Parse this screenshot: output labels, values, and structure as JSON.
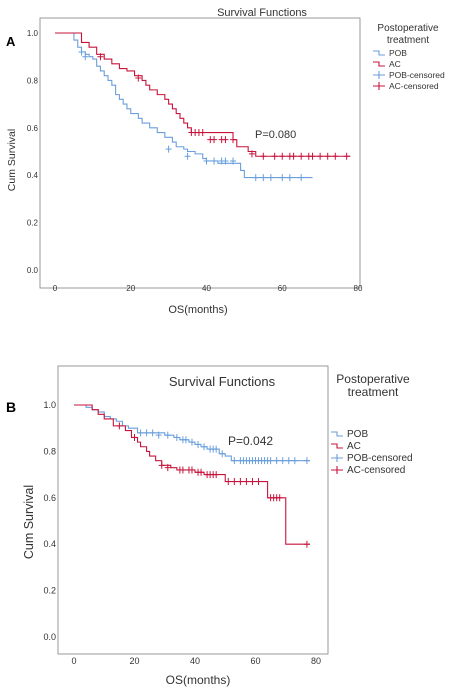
{
  "colors": {
    "POB": "#6a9fdc",
    "AC": "#c8143c",
    "axis": "#808080",
    "text": "#333333",
    "panel_label": "#000000"
  },
  "chart_data": [
    {
      "type": "line",
      "panel_label": "A",
      "title": "Survival Functions",
      "xlabel": "OS(months)",
      "ylabel": "Cum Survival",
      "xlim": [
        0,
        80
      ],
      "ylim": [
        0,
        1.0
      ],
      "x_ticks": [
        "0",
        "20",
        "40",
        "60",
        "80"
      ],
      "y_ticks": [
        "0.0",
        "0.2",
        "0.4",
        "0.6",
        "0.8",
        "1.0"
      ],
      "legend_title": "Postoperative treatment",
      "legend_placement": "top-right",
      "legend": [
        "POB",
        "AC",
        "POB-censored",
        "AC-censored"
      ],
      "annotation": "P=0.080",
      "grid": false,
      "series": [
        {
          "name": "POB",
          "color_key": "POB",
          "steps": [
            [
              0,
              1.0
            ],
            [
              5,
              0.97
            ],
            [
              6,
              0.94
            ],
            [
              7,
              0.92
            ],
            [
              8,
              0.91
            ],
            [
              9,
              0.9
            ],
            [
              10,
              0.89
            ],
            [
              11,
              0.86
            ],
            [
              12,
              0.84
            ],
            [
              13,
              0.82
            ],
            [
              14,
              0.8
            ],
            [
              15,
              0.78
            ],
            [
              16,
              0.74
            ],
            [
              17,
              0.72
            ],
            [
              18,
              0.7
            ],
            [
              19,
              0.68
            ],
            [
              20,
              0.66
            ],
            [
              22,
              0.64
            ],
            [
              23,
              0.62
            ],
            [
              25,
              0.6
            ],
            [
              27,
              0.58
            ],
            [
              29,
              0.56
            ],
            [
              31,
              0.54
            ],
            [
              32,
              0.52
            ],
            [
              34,
              0.51
            ],
            [
              35,
              0.5
            ],
            [
              37,
              0.49
            ],
            [
              39,
              0.47
            ],
            [
              40,
              0.46
            ],
            [
              43,
              0.45
            ],
            [
              49,
              0.42
            ],
            [
              50,
              0.39
            ],
            [
              68,
              0.39
            ]
          ],
          "censored": [
            [
              7,
              0.92
            ],
            [
              8,
              0.9
            ],
            [
              30,
              0.51
            ],
            [
              35,
              0.48
            ],
            [
              40,
              0.46
            ],
            [
              42,
              0.46
            ],
            [
              44,
              0.46
            ],
            [
              45,
              0.46
            ],
            [
              47,
              0.46
            ],
            [
              53,
              0.39
            ],
            [
              55,
              0.39
            ],
            [
              57,
              0.39
            ],
            [
              60,
              0.39
            ],
            [
              62,
              0.39
            ],
            [
              65,
              0.39
            ]
          ]
        },
        {
          "name": "AC",
          "color_key": "AC",
          "steps": [
            [
              0,
              1.0
            ],
            [
              7,
              0.96
            ],
            [
              9,
              0.94
            ],
            [
              11,
              0.91
            ],
            [
              13,
              0.89
            ],
            [
              15,
              0.87
            ],
            [
              17,
              0.85
            ],
            [
              19,
              0.84
            ],
            [
              21,
              0.82
            ],
            [
              23,
              0.8
            ],
            [
              24,
              0.78
            ],
            [
              25,
              0.76
            ],
            [
              27,
              0.74
            ],
            [
              29,
              0.72
            ],
            [
              30,
              0.7
            ],
            [
              31,
              0.68
            ],
            [
              32,
              0.66
            ],
            [
              33,
              0.64
            ],
            [
              34,
              0.62
            ],
            [
              35,
              0.6
            ],
            [
              36,
              0.58
            ],
            [
              47,
              0.55
            ],
            [
              48,
              0.52
            ],
            [
              51,
              0.5
            ],
            [
              53,
              0.48
            ],
            [
              78,
              0.48
            ]
          ],
          "censored": [
            [
              12,
              0.9
            ],
            [
              22,
              0.81
            ],
            [
              36,
              0.58
            ],
            [
              37,
              0.58
            ],
            [
              38,
              0.58
            ],
            [
              39,
              0.58
            ],
            [
              41,
              0.55
            ],
            [
              42,
              0.55
            ],
            [
              44,
              0.55
            ],
            [
              45,
              0.55
            ],
            [
              47,
              0.55
            ],
            [
              52,
              0.49
            ],
            [
              55,
              0.48
            ],
            [
              58,
              0.48
            ],
            [
              60,
              0.48
            ],
            [
              62,
              0.48
            ],
            [
              63,
              0.48
            ],
            [
              65,
              0.48
            ],
            [
              67,
              0.48
            ],
            [
              68,
              0.48
            ],
            [
              70,
              0.48
            ],
            [
              72,
              0.48
            ],
            [
              74,
              0.48
            ],
            [
              77,
              0.48
            ]
          ]
        }
      ]
    },
    {
      "type": "line",
      "panel_label": "B",
      "title": "Survival Functions",
      "xlabel": "OS(months)",
      "ylabel": "Cum Survival",
      "xlim": [
        0,
        80
      ],
      "ylim": [
        0,
        1.0
      ],
      "x_ticks": [
        "0",
        "20",
        "40",
        "60",
        "80"
      ],
      "y_ticks": [
        "0.0",
        "0.2",
        "0.4",
        "0.6",
        "0.8",
        "1.0"
      ],
      "legend_title": "Postoperative treatment",
      "legend_placement": "top-right",
      "legend": [
        "POB",
        "AC",
        "POB-censored",
        "AC-censored"
      ],
      "annotation": "P=0.042",
      "grid": false,
      "series": [
        {
          "name": "POB",
          "color_key": "POB",
          "steps": [
            [
              0,
              1.0
            ],
            [
              4,
              0.99
            ],
            [
              6,
              0.98
            ],
            [
              8,
              0.97
            ],
            [
              10,
              0.95
            ],
            [
              12,
              0.94
            ],
            [
              14,
              0.93
            ],
            [
              16,
              0.91
            ],
            [
              18,
              0.9
            ],
            [
              21,
              0.88
            ],
            [
              30,
              0.87
            ],
            [
              33,
              0.86
            ],
            [
              35,
              0.85
            ],
            [
              38,
              0.84
            ],
            [
              40,
              0.83
            ],
            [
              42,
              0.82
            ],
            [
              44,
              0.81
            ],
            [
              48,
              0.79
            ],
            [
              50,
              0.78
            ],
            [
              52,
              0.76
            ],
            [
              78,
              0.76
            ]
          ],
          "censored": [
            [
              22,
              0.88
            ],
            [
              24,
              0.88
            ],
            [
              26,
              0.88
            ],
            [
              28,
              0.87
            ],
            [
              31,
              0.87
            ],
            [
              34,
              0.86
            ],
            [
              36,
              0.85
            ],
            [
              37,
              0.85
            ],
            [
              39,
              0.84
            ],
            [
              41,
              0.83
            ],
            [
              43,
              0.82
            ],
            [
              45,
              0.81
            ],
            [
              46,
              0.81
            ],
            [
              47,
              0.81
            ],
            [
              49,
              0.79
            ],
            [
              53,
              0.76
            ],
            [
              55,
              0.76
            ],
            [
              56,
              0.76
            ],
            [
              57,
              0.76
            ],
            [
              58,
              0.76
            ],
            [
              59,
              0.76
            ],
            [
              60,
              0.76
            ],
            [
              61,
              0.76
            ],
            [
              62,
              0.76
            ],
            [
              63,
              0.76
            ],
            [
              64,
              0.76
            ],
            [
              65,
              0.76
            ],
            [
              67,
              0.76
            ],
            [
              69,
              0.76
            ],
            [
              71,
              0.76
            ],
            [
              73,
              0.76
            ],
            [
              77,
              0.76
            ]
          ]
        },
        {
          "name": "AC",
          "color_key": "AC",
          "steps": [
            [
              0,
              1.0
            ],
            [
              6,
              0.98
            ],
            [
              8,
              0.96
            ],
            [
              10,
              0.94
            ],
            [
              13,
              0.91
            ],
            [
              17,
              0.89
            ],
            [
              19,
              0.86
            ],
            [
              21,
              0.84
            ],
            [
              22,
              0.82
            ],
            [
              24,
              0.8
            ],
            [
              25,
              0.78
            ],
            [
              27,
              0.76
            ],
            [
              29,
              0.74
            ],
            [
              32,
              0.73
            ],
            [
              34,
              0.72
            ],
            [
              40,
              0.71
            ],
            [
              43,
              0.7
            ],
            [
              50,
              0.67
            ],
            [
              64,
              0.6
            ],
            [
              70,
              0.4
            ],
            [
              78,
              0.4
            ]
          ],
          "censored": [
            [
              15,
              0.91
            ],
            [
              20,
              0.86
            ],
            [
              29,
              0.74
            ],
            [
              31,
              0.73
            ],
            [
              35,
              0.72
            ],
            [
              36,
              0.72
            ],
            [
              38,
              0.72
            ],
            [
              39,
              0.72
            ],
            [
              41,
              0.71
            ],
            [
              42,
              0.71
            ],
            [
              44,
              0.7
            ],
            [
              45,
              0.7
            ],
            [
              46,
              0.7
            ],
            [
              47,
              0.7
            ],
            [
              51,
              0.67
            ],
            [
              53,
              0.67
            ],
            [
              55,
              0.67
            ],
            [
              57,
              0.67
            ],
            [
              59,
              0.67
            ],
            [
              61,
              0.67
            ],
            [
              65,
              0.6
            ],
            [
              66,
              0.6
            ],
            [
              67,
              0.6
            ],
            [
              68,
              0.6
            ],
            [
              77,
              0.4
            ]
          ]
        }
      ]
    }
  ]
}
